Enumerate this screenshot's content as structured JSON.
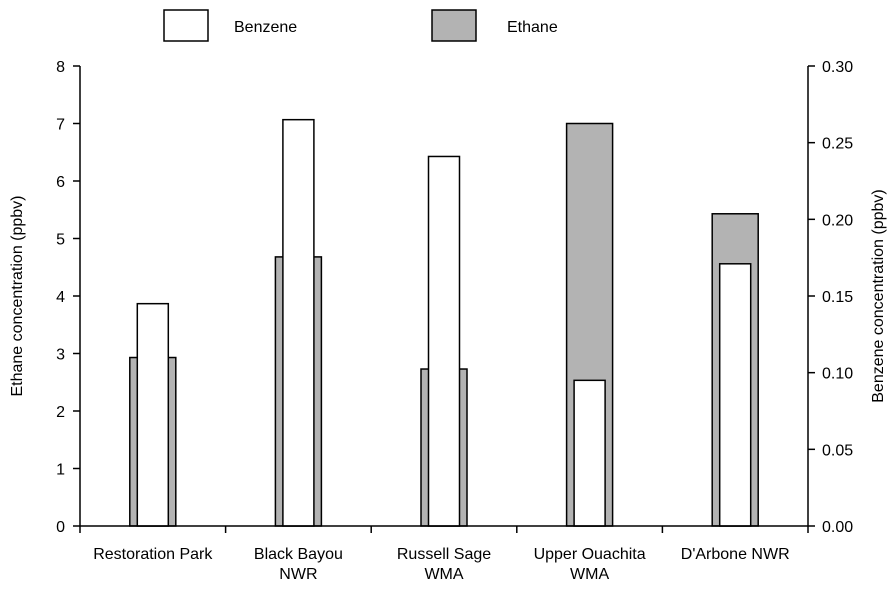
{
  "chart_data": {
    "type": "bar",
    "title": "",
    "categories": [
      [
        "Restoration Park"
      ],
      [
        "Black Bayou",
        "NWR"
      ],
      [
        "Russell Sage",
        "WMA"
      ],
      [
        "Upper Ouachita",
        "WMA"
      ],
      [
        "D'Arbone NWR"
      ]
    ],
    "series": [
      {
        "name": "Ethane",
        "axis": "left",
        "color": "#b3b3b3",
        "values": [
          2.93,
          4.68,
          2.73,
          7.0,
          5.43
        ]
      },
      {
        "name": "Benzene",
        "axis": "right",
        "color": "#ffffff",
        "values": [
          0.145,
          0.265,
          0.241,
          0.095,
          0.171
        ]
      }
    ],
    "y_left": {
      "label": "Ethane concentration (ppbv)",
      "min": 0,
      "max": 8,
      "ticks": [
        "0",
        "1",
        "2",
        "3",
        "4",
        "5",
        "6",
        "7",
        "8"
      ]
    },
    "y_right": {
      "label": "Benzene concentration (ppbv)",
      "min": 0,
      "max": 0.3,
      "ticks": [
        "0.00",
        "0.05",
        "0.10",
        "0.15",
        "0.20",
        "0.25",
        "0.30"
      ]
    },
    "legend": {
      "placement": "top",
      "items": [
        {
          "label": "Benzene",
          "color": "#ffffff"
        },
        {
          "label": "Ethane",
          "color": "#b3b3b3"
        }
      ]
    },
    "grid": false
  }
}
